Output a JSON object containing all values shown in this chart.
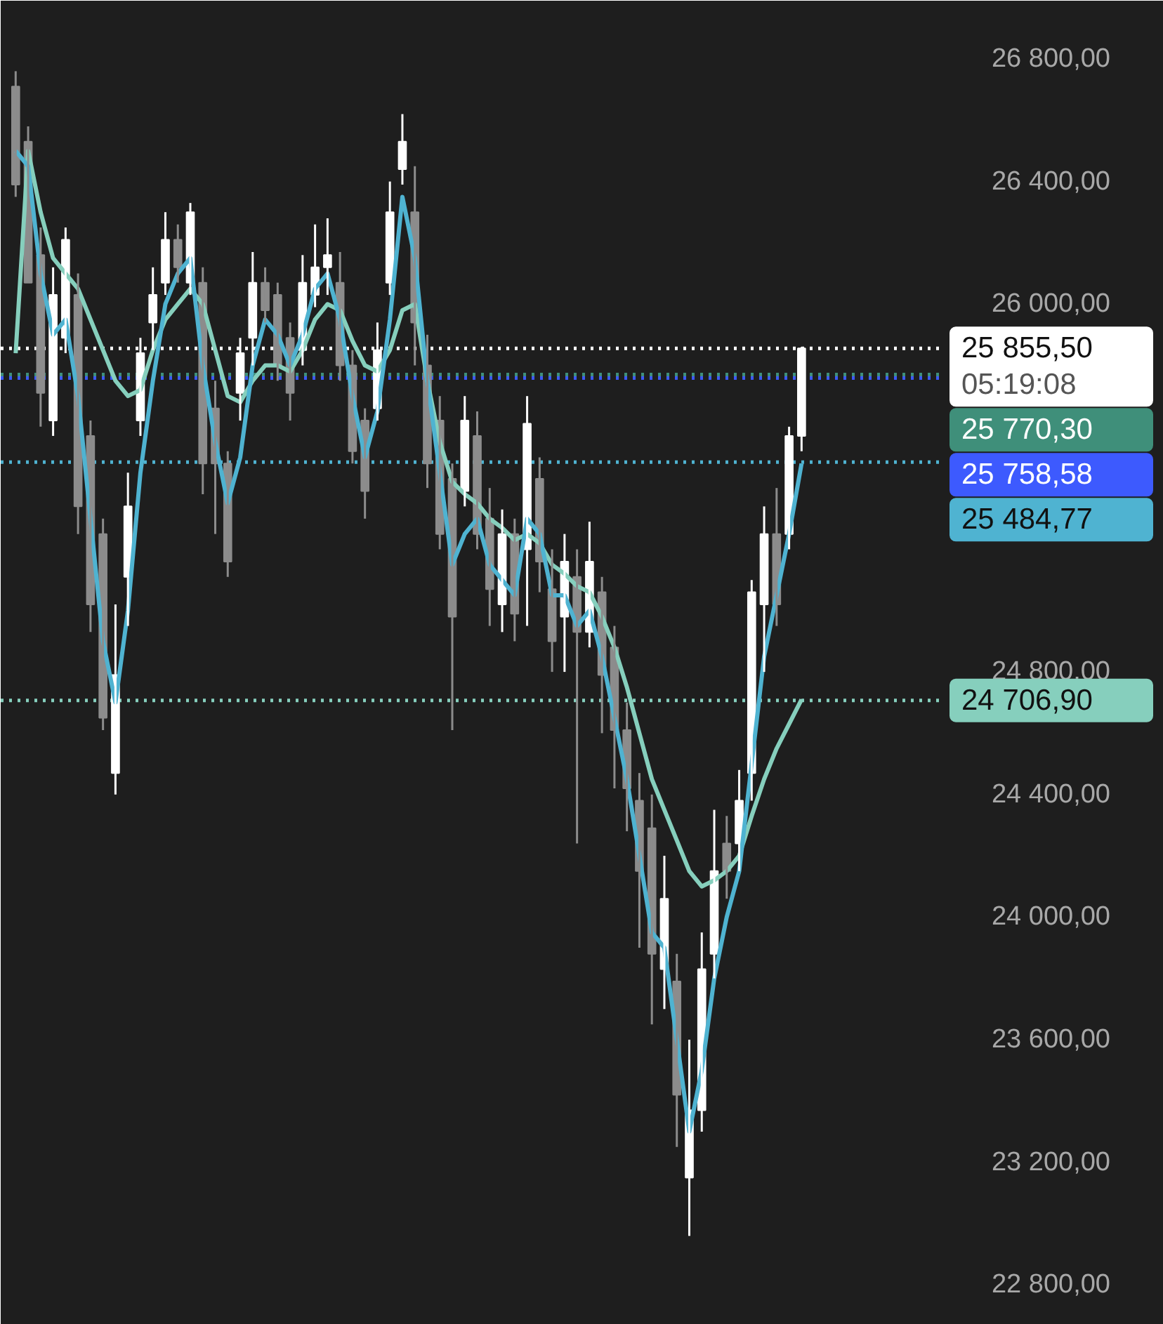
{
  "chart_data": {
    "type": "candlestick",
    "categories": [
      null,
      null,
      null,
      null,
      null,
      null,
      null,
      null,
      null,
      null,
      null,
      null,
      null,
      null,
      null,
      null,
      null,
      null,
      null,
      null,
      null,
      null,
      null,
      null,
      null,
      null,
      null,
      null,
      null,
      null,
      null,
      null,
      null,
      null,
      null,
      null,
      null,
      null,
      null,
      null,
      null,
      null,
      null,
      null,
      null,
      null,
      null,
      null,
      null,
      null,
      null,
      null,
      null,
      null,
      null,
      null,
      null,
      null,
      null,
      null,
      null,
      null,
      null,
      null
    ],
    "ohlc": [
      [
        26710,
        26760,
        26350,
        26390
      ],
      [
        26530,
        26580,
        26070,
        26070
      ],
      [
        26160,
        26250,
        25600,
        25710
      ],
      [
        25620,
        26120,
        25570,
        26030
      ],
      [
        25890,
        26250,
        25840,
        26210
      ],
      [
        26030,
        26100,
        25250,
        25340
      ],
      [
        25570,
        25620,
        24930,
        25020
      ],
      [
        25250,
        25300,
        24610,
        24650
      ],
      [
        24470,
        25020,
        24400,
        24790
      ],
      [
        25110,
        25450,
        24950,
        25340
      ],
      [
        25620,
        25890,
        25570,
        25840
      ],
      [
        25940,
        26120,
        25850,
        26030
      ],
      [
        26070,
        26300,
        26030,
        26210
      ],
      [
        26210,
        26260,
        26070,
        26120
      ],
      [
        26070,
        26330,
        26030,
        26300
      ],
      [
        26070,
        26120,
        25380,
        25480
      ],
      [
        25660,
        25750,
        25250,
        25480
      ],
      [
        25480,
        25520,
        25110,
        25160
      ],
      [
        25710,
        25890,
        25620,
        25840
      ],
      [
        25890,
        26170,
        25800,
        26070
      ],
      [
        26070,
        26120,
        25940,
        25980
      ],
      [
        26030,
        26070,
        25750,
        25800
      ],
      [
        25890,
        25940,
        25620,
        25710
      ],
      [
        25850,
        26160,
        25800,
        26070
      ],
      [
        26030,
        26260,
        25990,
        26120
      ],
      [
        26120,
        26280,
        26030,
        26160
      ],
      [
        26070,
        26170,
        25750,
        25800
      ],
      [
        25800,
        25850,
        25480,
        25520
      ],
      [
        25620,
        25660,
        25300,
        25390
      ],
      [
        25660,
        25940,
        25620,
        25850
      ],
      [
        26070,
        26400,
        26030,
        26300
      ],
      [
        26440,
        26620,
        26390,
        26530
      ],
      [
        26300,
        26450,
        25800,
        25940
      ],
      [
        25800,
        25900,
        25400,
        25480
      ],
      [
        25620,
        25700,
        25200,
        25250
      ],
      [
        25430,
        25480,
        24610,
        24980
      ],
      [
        25390,
        25700,
        25340,
        25620
      ],
      [
        25570,
        25650,
        25200,
        25250
      ],
      [
        25300,
        25400,
        24950,
        25070
      ],
      [
        25020,
        25330,
        24930,
        25250
      ],
      [
        25250,
        25300,
        24900,
        24990
      ],
      [
        25200,
        25700,
        24950,
        25610
      ],
      [
        25430,
        25500,
        25060,
        25160
      ],
      [
        25070,
        25200,
        24800,
        24900
      ],
      [
        24980,
        25250,
        24800,
        25160
      ],
      [
        25110,
        25200,
        24240,
        24930
      ],
      [
        24930,
        25290,
        24880,
        25160
      ],
      [
        25060,
        25110,
        24600,
        24790
      ],
      [
        24880,
        24950,
        24420,
        24610
      ],
      [
        24610,
        24700,
        24280,
        24420
      ],
      [
        24380,
        24470,
        23900,
        24150
      ],
      [
        24290,
        24400,
        23650,
        23880
      ],
      [
        23830,
        24200,
        23700,
        24060
      ],
      [
        23790,
        23880,
        23250,
        23420
      ],
      [
        23150,
        23600,
        22960,
        23370
      ],
      [
        23370,
        23950,
        23300,
        23830
      ],
      [
        23880,
        24350,
        23800,
        24150
      ],
      [
        24240,
        24330,
        24060,
        24150
      ],
      [
        24240,
        24480,
        24150,
        24380
      ],
      [
        24470,
        25100,
        24380,
        25060
      ],
      [
        25020,
        25340,
        24800,
        25250
      ],
      [
        25250,
        25400,
        24950,
        25020
      ],
      [
        25250,
        25600,
        25200,
        25570
      ],
      [
        25570,
        25860,
        25520,
        25855.5
      ]
    ],
    "colors": [
      "#8c8c8c",
      "#8c8c8c",
      "#8c8c8c",
      "#ffffff",
      "#ffffff",
      "#8c8c8c",
      "#8c8c8c",
      "#8c8c8c",
      "#ffffff",
      "#ffffff",
      "#ffffff",
      "#ffffff",
      "#ffffff",
      "#8c8c8c",
      "#ffffff",
      "#8c8c8c",
      "#8c8c8c",
      "#8c8c8c",
      "#ffffff",
      "#ffffff",
      "#8c8c8c",
      "#8c8c8c",
      "#8c8c8c",
      "#ffffff",
      "#ffffff",
      "#ffffff",
      "#8c8c8c",
      "#8c8c8c",
      "#8c8c8c",
      "#ffffff",
      "#ffffff",
      "#ffffff",
      "#8c8c8c",
      "#8c8c8c",
      "#8c8c8c",
      "#8c8c8c",
      "#ffffff",
      "#8c8c8c",
      "#8c8c8c",
      "#ffffff",
      "#8c8c8c",
      "#ffffff",
      "#8c8c8c",
      "#8c8c8c",
      "#ffffff",
      "#8c8c8c",
      "#ffffff",
      "#8c8c8c",
      "#8c8c8c",
      "#8c8c8c",
      "#8c8c8c",
      "#8c8c8c",
      "#ffffff",
      "#8c8c8c",
      "#ffffff",
      "#ffffff",
      "#ffffff",
      "#8c8c8c",
      "#ffffff",
      "#ffffff",
      "#ffffff",
      "#8c8c8c",
      "#ffffff",
      "#ffffff"
    ],
    "series": [
      {
        "type": "line",
        "color": "#86cfbd",
        "values": [
          25840,
          26500,
          26300,
          26150,
          26100,
          26050,
          25950,
          25850,
          25750,
          25700,
          25720,
          25850,
          25950,
          26000,
          26050,
          26000,
          25850,
          25700,
          25680,
          25750,
          25800,
          25800,
          25780,
          25850,
          25950,
          26000,
          25980,
          25880,
          25800,
          25780,
          25850,
          25980,
          26000,
          25750,
          25550,
          25420,
          25380,
          25350,
          25300,
          25270,
          25230,
          25250,
          25220,
          25150,
          25120,
          25080,
          25060,
          24980,
          24880,
          24750,
          24600,
          24450,
          24350,
          24250,
          24150,
          24100,
          24120,
          24150,
          24200,
          24330,
          24450,
          24550,
          24630,
          24710
        ]
      },
      {
        "type": "line",
        "color": "#4fb3d1",
        "values": [
          26500,
          26450,
          26100,
          25900,
          25950,
          25700,
          25300,
          24900,
          24700,
          25000,
          25450,
          25750,
          26000,
          26100,
          26150,
          25800,
          25550,
          25350,
          25500,
          25800,
          25950,
          25900,
          25800,
          25900,
          26050,
          26100,
          25950,
          25700,
          25500,
          25650,
          25950,
          26350,
          26150,
          25750,
          25450,
          25150,
          25250,
          25300,
          25150,
          25100,
          25050,
          25300,
          25250,
          25050,
          25050,
          24950,
          25000,
          24850,
          24650,
          24450,
          24200,
          23950,
          23900,
          23600,
          23300,
          23500,
          23800,
          24000,
          24150,
          24500,
          24850,
          25050,
          25250,
          25480
        ]
      }
    ],
    "ylim": [
      22670,
      26990
    ],
    "yticks": [
      {
        "value": 26800,
        "label": "26 800,00"
      },
      {
        "value": 26400,
        "label": "26 400,00"
      },
      {
        "value": 26000,
        "label": "26 000,00"
      },
      {
        "value": 24800,
        "label": "24 800,00"
      },
      {
        "value": 24400,
        "label": "24 400,00"
      },
      {
        "value": 24000,
        "label": "24 000,00"
      },
      {
        "value": 23600,
        "label": "23 600,00"
      },
      {
        "value": 23200,
        "label": "23 200,00"
      },
      {
        "value": 22800,
        "label": "22 800,00"
      }
    ],
    "ref_lines": [
      {
        "axis": "y",
        "value": 25855.5,
        "label": "25 855,50",
        "color": "#ffffff",
        "line_style": "dotted"
      },
      {
        "axis": "y",
        "value": 25770.3,
        "label": "25 770,30",
        "color": "#3f8f7a",
        "line_style": "dotted"
      },
      {
        "axis": "y",
        "value": 25758.58,
        "label": "25 758,58",
        "color": "#3d5afe",
        "line_style": "dotted"
      },
      {
        "axis": "y",
        "value": 25484.77,
        "label": "25 484,77",
        "color": "#4fb3d1",
        "line_style": "dotted"
      },
      {
        "axis": "y",
        "value": 24706.9,
        "label": "24 706,90",
        "color": "#86cfbd",
        "line_style": "dotted"
      }
    ],
    "annotations": [
      "05:19:08"
    ],
    "grid": false,
    "tick_labels": "y"
  }
}
